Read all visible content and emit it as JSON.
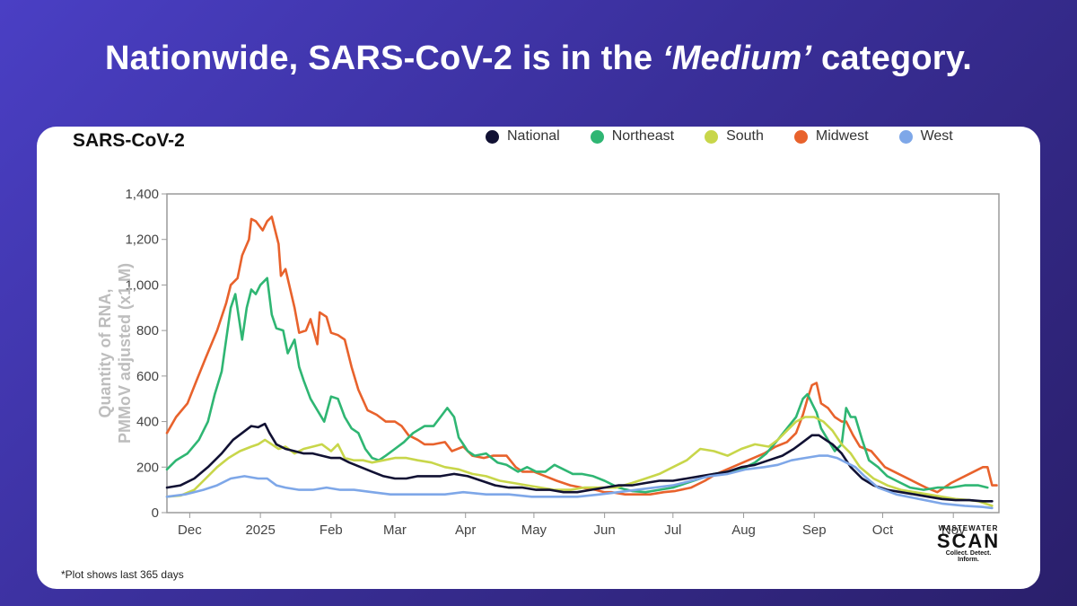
{
  "headline": {
    "before": "Nationwide, SARS-CoV-2 is in the ",
    "emphasis": "‘Medium’",
    "after": " category."
  },
  "card": {
    "title": "SARS-CoV-2",
    "footnote": "*Plot shows last 365 days"
  },
  "logo": {
    "top": "WASTEWATER",
    "main": "SCAN",
    "tagline": "Collect. Detect. Inform."
  },
  "chart_data": {
    "type": "line",
    "title": "SARS-CoV-2",
    "ylabel": "Quantity of RNA, PMMoV adjusted (x1 M)",
    "xlabel": "",
    "ylim": [
      0,
      1400
    ],
    "xlim": [
      0,
      365
    ],
    "y_ticks": [
      0,
      200,
      400,
      600,
      800,
      "1,000",
      "1,200",
      "1,400"
    ],
    "y_tick_values": [
      0,
      200,
      400,
      600,
      800,
      1000,
      1200,
      1400
    ],
    "x_ticks": [
      {
        "label": "Dec",
        "day": 10
      },
      {
        "label": "2025",
        "day": 41
      },
      {
        "label": "Feb",
        "day": 72
      },
      {
        "label": "Mar",
        "day": 100
      },
      {
        "label": "Apr",
        "day": 131
      },
      {
        "label": "May",
        "day": 161
      },
      {
        "label": "Jun",
        "day": 192
      },
      {
        "label": "Jul",
        "day": 222
      },
      {
        "label": "Aug",
        "day": 253
      },
      {
        "label": "Sep",
        "day": 284
      },
      {
        "label": "Oct",
        "day": 314
      },
      {
        "label": "Nov",
        "day": 345
      }
    ],
    "series": [
      {
        "name": "Midwest",
        "color": "#e8622c",
        "x": [
          0,
          4,
          9,
          13,
          17,
          22,
          26,
          28,
          31,
          33,
          36,
          37,
          39,
          42,
          44,
          46,
          49,
          50,
          52,
          56,
          58,
          61,
          63,
          66,
          67,
          70,
          72,
          75,
          78,
          81,
          84,
          88,
          92,
          96,
          100,
          103,
          106,
          110,
          113,
          117,
          122,
          125,
          130,
          134,
          139,
          143,
          149,
          153,
          156,
          161,
          166,
          171,
          177,
          182,
          188,
          192,
          195,
          201,
          206,
          212,
          218,
          223,
          230,
          236,
          241,
          248,
          255,
          262,
          267,
          272,
          276,
          279,
          281,
          283,
          285,
          287,
          290,
          293,
          296,
          298,
          301,
          304,
          309,
          315,
          321,
          327,
          333,
          338,
          344,
          350,
          356,
          358,
          360,
          362,
          364
        ],
        "values": [
          350,
          420,
          480,
          580,
          680,
          800,
          920,
          1000,
          1030,
          1130,
          1200,
          1290,
          1280,
          1240,
          1280,
          1300,
          1180,
          1040,
          1070,
          900,
          790,
          800,
          850,
          740,
          880,
          860,
          790,
          780,
          760,
          640,
          540,
          450,
          430,
          400,
          400,
          380,
          340,
          320,
          300,
          300,
          310,
          270,
          290,
          250,
          240,
          250,
          250,
          200,
          180,
          180,
          160,
          140,
          120,
          110,
          100,
          90,
          90,
          80,
          80,
          80,
          90,
          95,
          110,
          140,
          170,
          200,
          230,
          260,
          290,
          310,
          350,
          430,
          500,
          560,
          570,
          480,
          460,
          420,
          400,
          400,
          340,
          290,
          270,
          200,
          170,
          140,
          110,
          90,
          130,
          160,
          190,
          200,
          200,
          120,
          120
        ]
      },
      {
        "name": "Northeast",
        "color": "#2fb673",
        "x": [
          0,
          4,
          9,
          14,
          18,
          21,
          24,
          26,
          28,
          30,
          33,
          35,
          37,
          39,
          41,
          44,
          46,
          48,
          51,
          53,
          56,
          58,
          60,
          63,
          66,
          69,
          72,
          75,
          78,
          81,
          84,
          87,
          90,
          93,
          96,
          100,
          104,
          108,
          113,
          117,
          120,
          123,
          126,
          128,
          130,
          132,
          135,
          140,
          145,
          149,
          154,
          158,
          162,
          166,
          170,
          174,
          178,
          182,
          187,
          192,
          198,
          204,
          210,
          216,
          222,
          228,
          234,
          240,
          246,
          252,
          258,
          263,
          268,
          272,
          276,
          279,
          281,
          283,
          285,
          287,
          290,
          293,
          296,
          298,
          300,
          302,
          305,
          308,
          312,
          316,
          320,
          326,
          332,
          338,
          344,
          350,
          356,
          360
        ],
        "values": [
          190,
          230,
          260,
          320,
          400,
          520,
          620,
          760,
          900,
          960,
          760,
          900,
          980,
          960,
          1000,
          1030,
          870,
          810,
          800,
          700,
          760,
          640,
          580,
          500,
          450,
          400,
          510,
          500,
          420,
          370,
          350,
          280,
          240,
          230,
          250,
          280,
          310,
          350,
          380,
          380,
          420,
          460,
          420,
          330,
          300,
          270,
          250,
          260,
          220,
          210,
          180,
          200,
          180,
          180,
          210,
          190,
          170,
          170,
          160,
          140,
          110,
          95,
          90,
          100,
          110,
          130,
          150,
          170,
          180,
          190,
          220,
          260,
          320,
          370,
          420,
          500,
          520,
          480,
          440,
          370,
          320,
          270,
          300,
          460,
          420,
          420,
          320,
          230,
          200,
          160,
          140,
          110,
          100,
          110,
          110,
          120,
          120,
          110
        ]
      },
      {
        "name": "South",
        "color": "#c8d64a",
        "x": [
          0,
          6,
          12,
          17,
          22,
          27,
          32,
          37,
          40,
          43,
          46,
          49,
          52,
          56,
          60,
          64,
          68,
          72,
          75,
          78,
          82,
          86,
          90,
          95,
          100,
          105,
          110,
          116,
          122,
          128,
          134,
          140,
          146,
          152,
          158,
          164,
          170,
          177,
          183,
          190,
          197,
          204,
          210,
          216,
          222,
          228,
          234,
          240,
          246,
          252,
          258,
          264,
          268,
          272,
          276,
          280,
          284,
          288,
          292,
          296,
          300,
          304,
          310,
          316,
          322,
          328,
          334,
          340,
          346,
          352,
          356,
          359,
          362
        ],
        "values": [
          70,
          75,
          100,
          150,
          200,
          240,
          270,
          290,
          300,
          320,
          300,
          280,
          290,
          260,
          280,
          290,
          300,
          270,
          300,
          240,
          230,
          230,
          220,
          230,
          240,
          240,
          230,
          220,
          200,
          190,
          170,
          160,
          140,
          130,
          120,
          110,
          100,
          100,
          110,
          110,
          110,
          130,
          150,
          170,
          200,
          230,
          280,
          270,
          250,
          280,
          300,
          290,
          320,
          360,
          400,
          420,
          420,
          400,
          360,
          300,
          260,
          200,
          150,
          120,
          100,
          90,
          80,
          70,
          60,
          55,
          50,
          40,
          30
        ]
      },
      {
        "name": "National",
        "color": "#111133",
        "x": [
          0,
          6,
          12,
          18,
          24,
          29,
          33,
          37,
          40,
          43,
          45,
          48,
          52,
          56,
          60,
          64,
          68,
          72,
          76,
          80,
          85,
          90,
          95,
          100,
          105,
          110,
          115,
          120,
          126,
          132,
          138,
          144,
          150,
          156,
          162,
          168,
          174,
          180,
          186,
          192,
          198,
          204,
          210,
          216,
          222,
          228,
          234,
          240,
          246,
          252,
          258,
          264,
          270,
          275,
          279,
          283,
          286,
          289,
          292,
          296,
          300,
          305,
          310,
          316,
          322,
          328,
          334,
          340,
          346,
          352,
          358,
          362
        ],
        "values": [
          110,
          120,
          150,
          200,
          260,
          320,
          350,
          380,
          375,
          390,
          350,
          300,
          280,
          270,
          260,
          260,
          250,
          240,
          240,
          220,
          200,
          180,
          160,
          150,
          150,
          160,
          160,
          160,
          170,
          160,
          140,
          120,
          110,
          110,
          100,
          100,
          90,
          90,
          100,
          110,
          120,
          120,
          130,
          140,
          140,
          150,
          160,
          170,
          180,
          200,
          210,
          230,
          250,
          280,
          310,
          340,
          340,
          320,
          300,
          260,
          200,
          150,
          120,
          100,
          90,
          80,
          70,
          60,
          55,
          55,
          50,
          50
        ]
      },
      {
        "name": "West",
        "color": "#7ea7e8",
        "x": [
          0,
          8,
          16,
          22,
          28,
          34,
          40,
          44,
          48,
          52,
          58,
          64,
          70,
          76,
          82,
          90,
          98,
          106,
          114,
          122,
          130,
          140,
          150,
          160,
          170,
          180,
          190,
          198,
          206,
          214,
          222,
          230,
          238,
          246,
          254,
          262,
          268,
          274,
          280,
          286,
          290,
          294,
          298,
          302,
          306,
          312,
          320,
          330,
          340,
          350,
          358,
          362
        ],
        "values": [
          70,
          80,
          100,
          120,
          150,
          160,
          150,
          150,
          120,
          110,
          100,
          100,
          110,
          100,
          100,
          90,
          80,
          80,
          80,
          80,
          90,
          80,
          80,
          70,
          70,
          70,
          80,
          90,
          100,
          110,
          120,
          140,
          160,
          170,
          190,
          200,
          210,
          230,
          240,
          250,
          250,
          240,
          220,
          200,
          160,
          110,
          80,
          60,
          40,
          30,
          25,
          20
        ]
      }
    ]
  }
}
